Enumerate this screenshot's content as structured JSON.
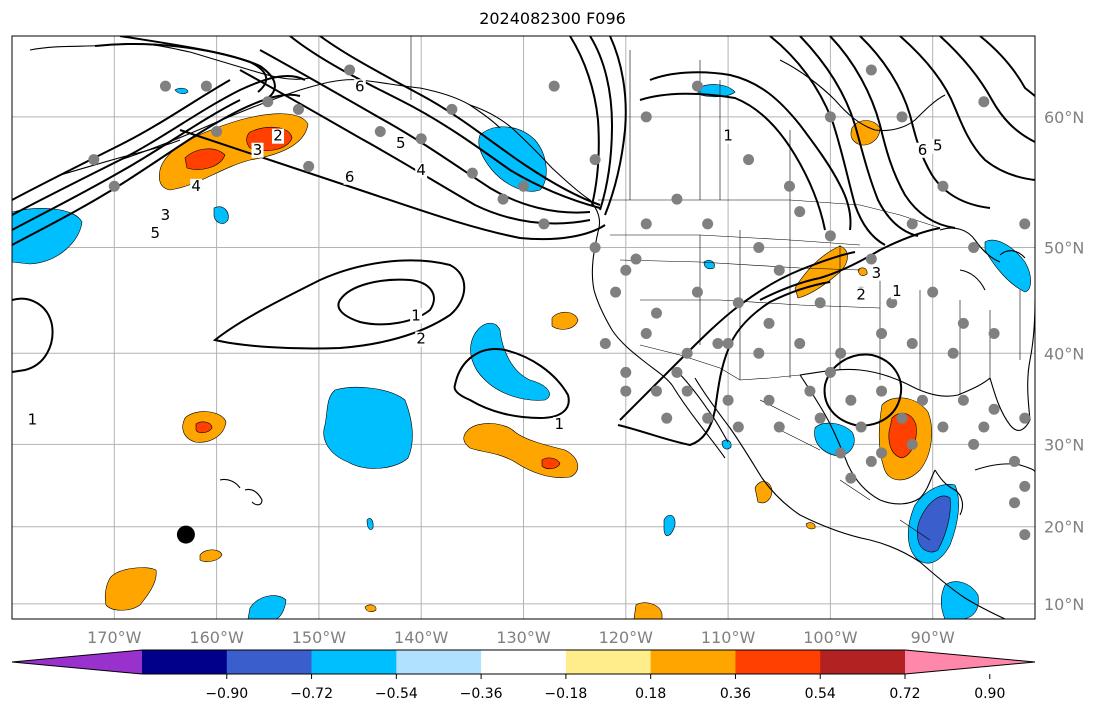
{
  "title": "2024082300 F096",
  "map": {
    "projection": "mercator",
    "lon_range": [
      -180,
      -80
    ],
    "lat_range": [
      8,
      65
    ],
    "gridlines": true,
    "lon_ticks": [
      {
        "lon": -170,
        "label": "170°W"
      },
      {
        "lon": -160,
        "label": "160°W"
      },
      {
        "lon": -150,
        "label": "150°W"
      },
      {
        "lon": -140,
        "label": "140°W"
      },
      {
        "lon": -130,
        "label": "130°W"
      },
      {
        "lon": -120,
        "label": "120°W"
      },
      {
        "lon": -110,
        "label": "110°W"
      },
      {
        "lon": -100,
        "label": "100°W"
      },
      {
        "lon": -90,
        "label": "90°W"
      }
    ],
    "lat_ticks": [
      {
        "lat": 60,
        "label": "60°N"
      },
      {
        "lat": 50,
        "label": "50°N"
      },
      {
        "lat": 40,
        "label": "40°N"
      },
      {
        "lat": 30,
        "label": "30°N"
      },
      {
        "lat": 20,
        "label": "20°N"
      },
      {
        "lat": 10,
        "label": "10°N"
      }
    ],
    "contour_labels": [
      {
        "text": "6",
        "lon": -147,
        "lat": 55.5
      },
      {
        "text": "5",
        "lon": -166,
        "lat": 51
      },
      {
        "text": "3",
        "lon": -165,
        "lat": 52.5
      },
      {
        "text": "4",
        "lon": -162,
        "lat": 54.8
      },
      {
        "text": "3",
        "lon": -156,
        "lat": 57.5
      },
      {
        "text": "2",
        "lon": -154,
        "lat": 58.5
      },
      {
        "text": "6",
        "lon": -146,
        "lat": 61.8
      },
      {
        "text": "5",
        "lon": -142,
        "lat": 58
      },
      {
        "text": "4",
        "lon": -140,
        "lat": 56
      },
      {
        "text": "1",
        "lon": -110,
        "lat": 58.5
      },
      {
        "text": "6",
        "lon": -91,
        "lat": 57.5
      },
      {
        "text": "5",
        "lon": -89.5,
        "lat": 57.8
      },
      {
        "text": "3",
        "lon": -95.5,
        "lat": 47.5
      },
      {
        "text": "2",
        "lon": -97,
        "lat": 45.5
      },
      {
        "text": "1",
        "lon": -93.5,
        "lat": 45.8
      },
      {
        "text": "1",
        "lon": -140.5,
        "lat": 43.5
      },
      {
        "text": "2",
        "lon": -140,
        "lat": 41.2
      },
      {
        "text": "1",
        "lon": -178,
        "lat": 32.5
      },
      {
        "text": "1",
        "lon": -126.5,
        "lat": 32
      }
    ],
    "marker": {
      "lon": -163,
      "lat": 19,
      "color": "#000000"
    }
  },
  "colorbar": {
    "extend": "both",
    "colors": [
      "#9932cc",
      "#00008b",
      "#3a5fcd",
      "#00bfff",
      "#b0e2ff",
      "#ffffff",
      "#ffec8b",
      "#ffa500",
      "#ff4000",
      "#b22222",
      "#ff88aa"
    ],
    "tick_labels": [
      "−0.90",
      "−0.72",
      "−0.54",
      "−0.36",
      "−0.18",
      "0.18",
      "0.36",
      "0.54",
      "0.72",
      "0.90"
    ],
    "tick_values": [
      -0.9,
      -0.72,
      -0.54,
      -0.36,
      -0.18,
      0.18,
      0.36,
      0.54,
      0.72,
      0.9
    ]
  },
  "colors": {
    "gridline": "#b3b3b3",
    "tick_label": "#808080",
    "station": "#808080",
    "contour": "#000000"
  }
}
